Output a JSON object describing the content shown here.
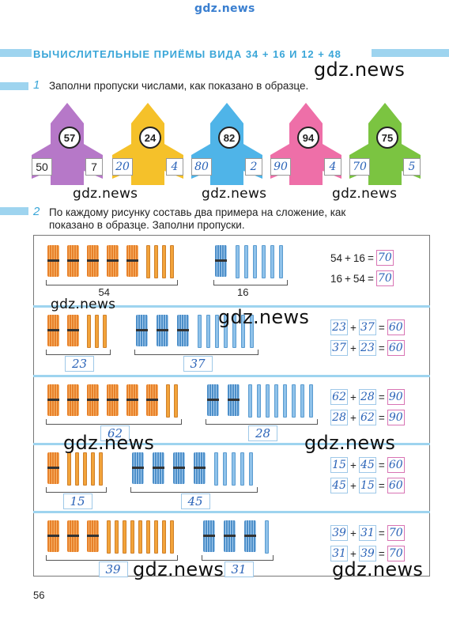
{
  "watermark": "gdz.news",
  "section_title": "ВЫЧИСЛИТЕЛЬНЫЕ ПРИЁМЫ ВИДА 34 + 16 И 12 + 48",
  "task1": {
    "number": "1",
    "text": "Заполни пропуски числами, как показано в образце.",
    "rockets": [
      {
        "color": "#b678c8",
        "center": "57",
        "left": "50",
        "right": "7",
        "sample": true
      },
      {
        "color": "#f5c12a",
        "center": "24",
        "left": "20",
        "right": "4",
        "sample": false
      },
      {
        "color": "#4fb4e8",
        "center": "82",
        "left": "80",
        "right": "2",
        "sample": false
      },
      {
        "color": "#ee6fa8",
        "center": "94",
        "left": "90",
        "right": "4",
        "sample": false
      },
      {
        "color": "#7bc441",
        "center": "75",
        "left": "70",
        "right": "5",
        "sample": false
      }
    ]
  },
  "task2": {
    "number": "2",
    "text_line1": "По каждому рисунку составь два примера на сложение, как",
    "text_line2": "показано в образце. Заполни пропуски.",
    "rows": [
      {
        "orange_tens": 5,
        "orange_ones": 4,
        "blue_tens": 1,
        "blue_ones": 6,
        "count_left": "54",
        "count_right": "16",
        "eq1": {
          "a": "54",
          "b": "16",
          "r": "70"
        },
        "eq2": {
          "a": "16",
          "b": "54",
          "r": "70"
        },
        "sample": true
      },
      {
        "orange_tens": 2,
        "orange_ones": 3,
        "blue_tens": 3,
        "blue_ones": 7,
        "count_left": "23",
        "count_right": "37",
        "eq1": {
          "a": "23",
          "b": "37",
          "r": "60"
        },
        "eq2": {
          "a": "37",
          "b": "23",
          "r": "60"
        },
        "sample": false
      },
      {
        "orange_tens": 6,
        "orange_ones": 2,
        "blue_tens": 2,
        "blue_ones": 8,
        "count_left": "62",
        "count_right": "28",
        "eq1": {
          "a": "62",
          "b": "28",
          "r": "90"
        },
        "eq2": {
          "a": "28",
          "b": "62",
          "r": "90"
        },
        "sample": false
      },
      {
        "orange_tens": 1,
        "orange_ones": 5,
        "blue_tens": 4,
        "blue_ones": 5,
        "count_left": "15",
        "count_right": "45",
        "eq1": {
          "a": "15",
          "b": "45",
          "r": "60"
        },
        "eq2": {
          "a": "45",
          "b": "15",
          "r": "60"
        },
        "sample": false
      },
      {
        "orange_tens": 3,
        "orange_ones": 9,
        "blue_tens": 3,
        "blue_ones": 1,
        "count_left": "39",
        "count_right": "31",
        "eq1": {
          "a": "39",
          "b": "31",
          "r": "70"
        },
        "eq2": {
          "a": "31",
          "b": "39",
          "r": "70"
        },
        "sample": false
      }
    ],
    "plus": "+",
    "equals": "="
  },
  "page_number": "56"
}
